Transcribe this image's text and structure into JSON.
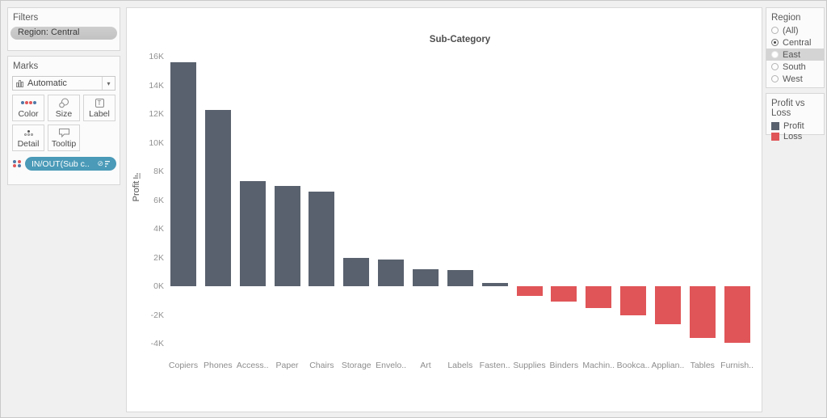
{
  "filters_card": {
    "title": "Filters",
    "pill": "Region: Central"
  },
  "marks_card": {
    "title": "Marks",
    "mark_type": "Automatic",
    "buttons": [
      {
        "label": "Color"
      },
      {
        "label": "Size"
      },
      {
        "label": "Label"
      },
      {
        "label": "Detail"
      },
      {
        "label": "Tooltip"
      }
    ],
    "pill": "IN/OUT(Sub c..",
    "pill_color": "#4a9ab8"
  },
  "chart_data": {
    "type": "bar",
    "title": "Sub-Category",
    "xlabel": "",
    "ylabel": "Profit",
    "categories": [
      "Copiers",
      "Phones",
      "Access..",
      "Paper",
      "Chairs",
      "Storage",
      "Envelo..",
      "Art",
      "Labels",
      "Fasten..",
      "Supplies",
      "Binders",
      "Machin..",
      "Bookca..",
      "Applian..",
      "Tables",
      "Furnish.."
    ],
    "values": [
      15.6,
      12.3,
      7.3,
      7.0,
      6.6,
      2.0,
      1.85,
      1.2,
      1.1,
      0.25,
      -0.7,
      -1.05,
      -1.5,
      -2.0,
      -2.65,
      -3.6,
      -3.95
    ],
    "value_unit": "K",
    "y_ticks": [
      {
        "label": "16K",
        "value": 16
      },
      {
        "label": "14K",
        "value": 14
      },
      {
        "label": "12K",
        "value": 12
      },
      {
        "label": "10K",
        "value": 10
      },
      {
        "label": "8K",
        "value": 8
      },
      {
        "label": "6K",
        "value": 6
      },
      {
        "label": "4K",
        "value": 4
      },
      {
        "label": "2K",
        "value": 2
      },
      {
        "label": "0K",
        "value": 0
      },
      {
        "label": "-2K",
        "value": -2
      },
      {
        "label": "-4K",
        "value": -4
      }
    ],
    "ylim": [
      -4.8,
      16.5
    ],
    "grid": false,
    "legend_position": "right",
    "colors": {
      "profit": "#59616e",
      "loss": "#e05558"
    }
  },
  "region_legend": {
    "title": "Region",
    "options": [
      {
        "label": "(All)",
        "selected": false,
        "highlighted": false
      },
      {
        "label": "Central",
        "selected": true,
        "highlighted": false
      },
      {
        "label": "East",
        "selected": false,
        "highlighted": true
      },
      {
        "label": "South",
        "selected": false,
        "highlighted": false
      },
      {
        "label": "West",
        "selected": false,
        "highlighted": false
      }
    ]
  },
  "color_legend": {
    "title": "Profit vs Loss",
    "entries": [
      {
        "label": "Profit",
        "color": "#59616e"
      },
      {
        "label": "Loss",
        "color": "#e05558"
      }
    ]
  },
  "icon_colors": {
    "dot_blue": "#4e79a7",
    "dot_red": "#e15759"
  }
}
